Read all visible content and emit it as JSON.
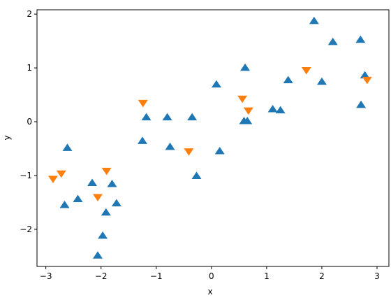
{
  "chart_data": {
    "type": "scatter",
    "xlabel": "x",
    "ylabel": "y",
    "xlim": [
      -3.16,
      3.215
    ],
    "ylim": [
      -2.69,
      2.08
    ],
    "xticks": [
      {
        "value": -3,
        "label": "−3"
      },
      {
        "value": -2,
        "label": "−2"
      },
      {
        "value": -1,
        "label": "−1"
      },
      0,
      1,
      2,
      3
    ],
    "yticks": [
      {
        "value": -2,
        "label": "−2"
      },
      {
        "value": -1,
        "label": "−1"
      },
      0,
      1,
      2
    ],
    "grid": false,
    "series": [
      {
        "color": "#1f77b4",
        "marker": "triangle-up",
        "x": [
          1.86,
          2.2,
          2.7,
          2.78,
          2.71,
          2.0,
          1.39,
          1.11,
          1.25,
          0.61,
          0.59,
          0.65,
          0.09,
          0.15,
          -0.27,
          -0.35,
          -0.75,
          -0.8,
          -1.18,
          -1.25,
          -1.72,
          -1.8,
          -1.91,
          -1.97,
          -2.06,
          -2.16,
          -2.42,
          -2.61,
          -2.66
        ],
        "values": [
          1.87,
          1.48,
          1.52,
          0.86,
          0.31,
          0.74,
          0.77,
          0.23,
          0.21,
          1.0,
          0.01,
          0.01,
          0.69,
          -0.55,
          -1.01,
          0.08,
          -0.47,
          0.08,
          0.08,
          -0.36,
          -1.52,
          -1.16,
          -1.69,
          -2.12,
          -2.49,
          -1.14,
          -1.44,
          -0.49,
          -1.55
        ]
      },
      {
        "color": "#ff7f0e",
        "marker": "triangle-down",
        "x": [
          -2.87,
          -2.72,
          -2.06,
          -1.9,
          -1.24,
          -0.41,
          0.56,
          0.67,
          1.72,
          2.82
        ],
        "values": [
          -1.06,
          -0.96,
          -1.4,
          -0.91,
          0.35,
          -0.55,
          0.43,
          0.21,
          0.96,
          0.78
        ]
      }
    ]
  }
}
